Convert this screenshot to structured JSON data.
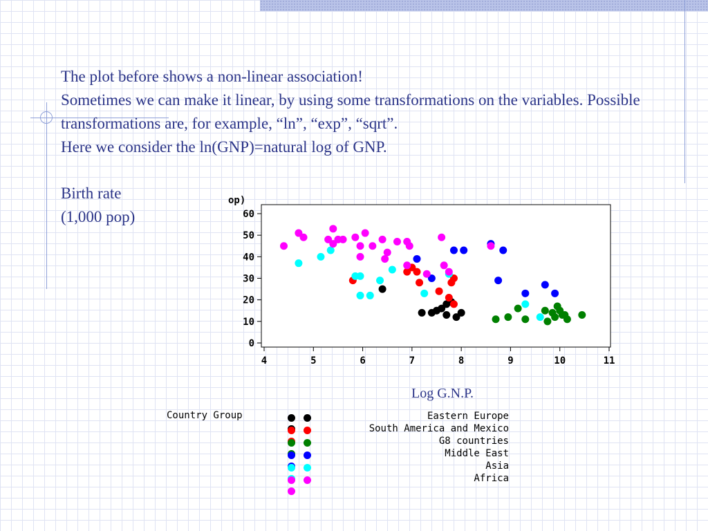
{
  "slide": {
    "paragraphs": [
      "The plot before shows a non-linear association!",
      "Sometimes we can make it linear, by using some transformations on the variables. Possible transformations are, for example, “ln”, “exp”, “sqrt”.",
      "Here we consider the ln(GNP)=natural log of GNP."
    ],
    "ylabel_line1": "Birth rate",
    "ylabel_line2": "(1,000 pop)",
    "xlabel": "Log G.N.P."
  },
  "chart_data": {
    "type": "scatter",
    "xlabel": "Log G.N.P.",
    "ylabel": "Birth rate (1,000 pop)",
    "axis_unit_fragment": "op)",
    "xlim": [
      4,
      11
    ],
    "ylim": [
      0,
      60
    ],
    "xticks": [
      4,
      5,
      6,
      7,
      8,
      9,
      10,
      11
    ],
    "yticks": [
      0,
      10,
      20,
      30,
      40,
      50,
      60
    ],
    "grid": false,
    "legend_title": "Country Group",
    "legend_position": "bottom",
    "series": [
      {
        "name": "Eastern Europe",
        "color": "#000000",
        "points": [
          [
            6.4,
            25
          ],
          [
            7.2,
            14
          ],
          [
            7.4,
            14
          ],
          [
            7.5,
            15
          ],
          [
            7.6,
            16
          ],
          [
            7.7,
            13
          ],
          [
            7.8,
            19
          ],
          [
            7.9,
            12
          ],
          [
            8.0,
            14
          ],
          [
            7.7,
            18
          ]
        ]
      },
      {
        "name": "South America and Mexico",
        "color": "#ff0000",
        "points": [
          [
            5.8,
            29
          ],
          [
            6.9,
            33
          ],
          [
            7.0,
            35
          ],
          [
            7.1,
            33
          ],
          [
            7.15,
            28
          ],
          [
            7.55,
            24
          ],
          [
            7.75,
            21
          ],
          [
            7.85,
            30
          ],
          [
            7.85,
            18
          ],
          [
            7.8,
            28
          ]
        ]
      },
      {
        "name": "G8 countries",
        "color": "#008000",
        "points": [
          [
            8.7,
            11
          ],
          [
            8.95,
            12
          ],
          [
            9.15,
            16
          ],
          [
            9.3,
            11
          ],
          [
            9.7,
            15
          ],
          [
            9.75,
            10
          ],
          [
            9.85,
            14
          ],
          [
            9.95,
            17
          ],
          [
            10.0,
            15
          ],
          [
            10.05,
            13
          ],
          [
            10.15,
            11
          ],
          [
            10.1,
            13
          ],
          [
            10.45,
            13
          ],
          [
            9.9,
            12
          ]
        ]
      },
      {
        "name": "Middle East",
        "color": "#0000ff",
        "points": [
          [
            7.1,
            39
          ],
          [
            7.4,
            30
          ],
          [
            7.85,
            43
          ],
          [
            8.05,
            43
          ],
          [
            8.6,
            46
          ],
          [
            8.75,
            29
          ],
          [
            8.85,
            43
          ],
          [
            9.3,
            23
          ],
          [
            9.7,
            27
          ],
          [
            9.9,
            23
          ]
        ]
      },
      {
        "name": "Asia",
        "color": "#00ffff",
        "points": [
          [
            4.7,
            37
          ],
          [
            5.15,
            40
          ],
          [
            5.35,
            43
          ],
          [
            5.85,
            31
          ],
          [
            5.95,
            31
          ],
          [
            5.95,
            22
          ],
          [
            6.15,
            22
          ],
          [
            6.35,
            29
          ],
          [
            6.6,
            34
          ],
          [
            7.25,
            23
          ],
          [
            7.75,
            32
          ],
          [
            9.3,
            18
          ],
          [
            9.6,
            12
          ]
        ]
      },
      {
        "name": "Africa",
        "color": "#ff00ff",
        "points": [
          [
            4.4,
            45
          ],
          [
            4.7,
            51
          ],
          [
            4.8,
            49
          ],
          [
            5.3,
            48
          ],
          [
            5.4,
            53
          ],
          [
            5.4,
            46
          ],
          [
            5.5,
            48
          ],
          [
            5.6,
            48
          ],
          [
            5.85,
            49
          ],
          [
            5.95,
            45
          ],
          [
            5.95,
            40
          ],
          [
            6.05,
            51
          ],
          [
            6.2,
            45
          ],
          [
            6.4,
            48
          ],
          [
            6.45,
            39
          ],
          [
            6.5,
            42
          ],
          [
            6.7,
            47
          ],
          [
            6.9,
            47
          ],
          [
            6.95,
            45
          ],
          [
            6.9,
            36
          ],
          [
            7.3,
            32
          ],
          [
            7.6,
            49
          ],
          [
            7.65,
            36
          ],
          [
            7.75,
            33
          ],
          [
            8.6,
            45
          ]
        ]
      }
    ]
  }
}
